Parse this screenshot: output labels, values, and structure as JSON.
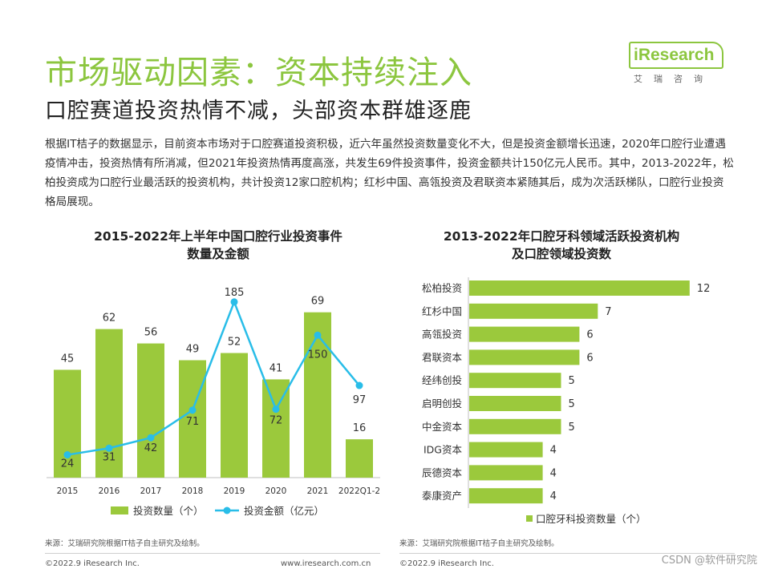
{
  "page": {
    "title": "市场驱动因素：资本持续注入",
    "subtitle": "口腔赛道投资热情不减，头部资本群雄逐鹿",
    "description": "根据IT桔子的数据显示，目前资本市场对于口腔赛道投资积极，近六年虽然投资数量变化不大，但是投资金额增长迅速，2020年口腔行业遭遇疫情冲击，投资热情有所消减，但2021年投资热情再度高涨，共发生69件投资事件，投资金额共计150亿元人民币。其中，2013-2022年，松柏投资成为口腔行业最活跃的投资机构，共计投资12家口腔机构；红杉中国、高瓴投资及君联资本紧随其后，成为次活跃梯队，口腔行业投资格局展现。"
  },
  "logo": {
    "text": "iResearch",
    "cn": "艾瑞咨询"
  },
  "left_chart_title": [
    "2015-2022年上半年中国口腔行业投资事件",
    "数量及金额"
  ],
  "right_chart_title": [
    "2013-2022年口腔牙科领域活跃投资机构",
    "及口腔领域投资数"
  ],
  "chart_data": [
    {
      "type": "bar+line",
      "title": "2015-2022年上半年中国口腔行业投资事件数量及金额",
      "categories": [
        "2015",
        "2016",
        "2017",
        "2018",
        "2019",
        "2020",
        "2021",
        "2022Q1-2"
      ],
      "series": [
        {
          "name": "投资数量（个）",
          "type": "bar",
          "values": [
            45,
            62,
            56,
            49,
            52,
            41,
            69,
            16
          ]
        },
        {
          "name": "投资金额（亿元）",
          "type": "line",
          "values": [
            24,
            31,
            42,
            71,
            185,
            72,
            150,
            97
          ]
        }
      ],
      "legend_position": "bottom",
      "colors": {
        "bar": "#9bc93c",
        "line": "#29bde8"
      }
    },
    {
      "type": "hbar",
      "title": "2013-2022年口腔牙科领域活跃投资机构及口腔领域投资数",
      "categories": [
        "松柏投资",
        "红杉中国",
        "高瓴投资",
        "君联资本",
        "经纬创投",
        "启明创投",
        "中金资本",
        "IDG资本",
        "辰德资本",
        "泰康资产"
      ],
      "series": [
        {
          "name": "口腔牙科投资数量（个）",
          "values": [
            12,
            7,
            6,
            6,
            5,
            5,
            5,
            4,
            4,
            4
          ]
        }
      ],
      "legend_position": "bottom",
      "colors": {
        "bar": "#9bc93c"
      }
    }
  ],
  "sources": {
    "left": "来源：艾瑞研究院根据IT桔子自主研究及绘制。",
    "right": "来源：艾瑞研究院根据IT桔子自主研究及绘制。"
  },
  "footer": {
    "copyright_left": "©2022.9 iResearch Inc.",
    "url": "www.iresearch.com.cn",
    "copyright_right": "©2022.9 iResearch Inc.",
    "watermark": "CSDN @软件研究院"
  }
}
